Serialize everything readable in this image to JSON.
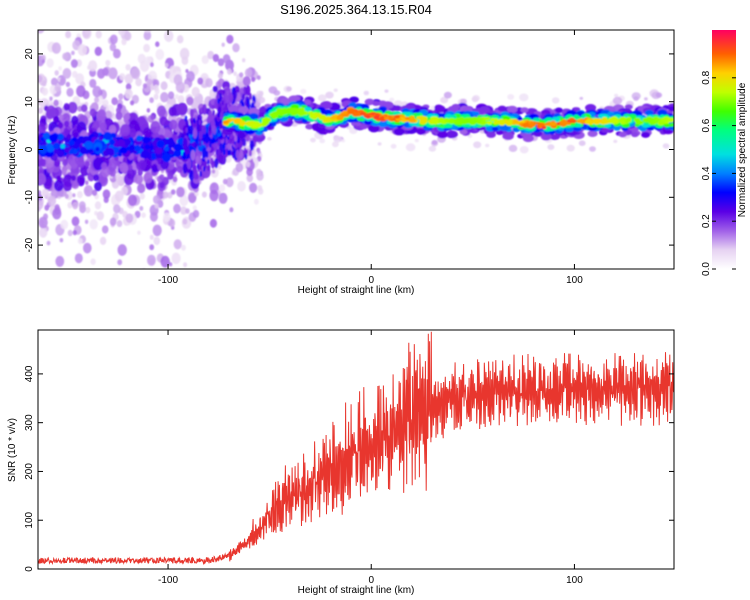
{
  "figure_title": "S196.2025.364.13.15.R04",
  "chart_data": [
    {
      "type": "heatmap",
      "title": "S196.2025.364.13.15.R04",
      "xlabel": "Height of straight line (km)",
      "ylabel": "Frequency (Hz)",
      "xlim": [
        -164,
        149
      ],
      "ylim": [
        -25,
        25
      ],
      "xticks": [
        -100,
        0,
        100
      ],
      "yticks": [
        -20,
        -10,
        0,
        10,
        20
      ],
      "colorbar": {
        "label": "Normalized spectral amplitude",
        "range": [
          0,
          1
        ],
        "ticks": [
          0.0,
          0.2,
          0.4,
          0.6,
          0.8
        ]
      },
      "ridge": {
        "description": "dominant frequency track",
        "points_km_hz": [
          [
            -160,
            1
          ],
          [
            -130,
            1
          ],
          [
            -100,
            0
          ],
          [
            -85,
            1
          ],
          [
            -70,
            6
          ],
          [
            -55,
            5
          ],
          [
            -45,
            8
          ],
          [
            -35,
            8
          ],
          [
            -20,
            6
          ],
          [
            -10,
            8
          ],
          [
            0,
            7
          ],
          [
            30,
            6
          ],
          [
            60,
            6
          ],
          [
            85,
            5
          ],
          [
            100,
            6
          ],
          [
            149,
            6
          ]
        ]
      }
    },
    {
      "type": "line",
      "xlabel": "Height of straight line (km)",
      "ylabel": "SNR (10 * v/v)",
      "xlim": [
        -164,
        149
      ],
      "ylim": [
        0,
        490
      ],
      "xticks": [
        -100,
        0,
        100
      ],
      "yticks": [
        0,
        100,
        200,
        300,
        400
      ],
      "series": [
        {
          "name": "SNR",
          "color": "#e8362e",
          "trend_km_snr": [
            [
              -164,
              15
            ],
            [
              -100,
              15
            ],
            [
              -80,
              15
            ],
            [
              -70,
              25
            ],
            [
              -60,
              60
            ],
            [
              -50,
              110
            ],
            [
              -40,
              150
            ],
            [
              -30,
              170
            ],
            [
              -20,
              210
            ],
            [
              -10,
              230
            ],
            [
              0,
              250
            ],
            [
              10,
              280
            ],
            [
              20,
              310
            ],
            [
              30,
              330
            ],
            [
              40,
              345
            ],
            [
              50,
              360
            ],
            [
              70,
              365
            ],
            [
              100,
              370
            ],
            [
              149,
              370
            ]
          ]
        }
      ]
    }
  ]
}
